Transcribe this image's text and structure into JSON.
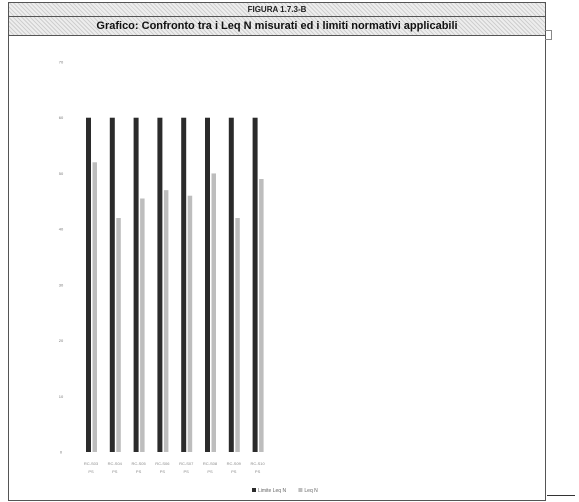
{
  "figure_label": "FIGURA 1.7.3-B",
  "chart_data": {
    "type": "bar",
    "title": "Grafico: Confronto tra i Leq N misurati ed i limiti normativi applicabili",
    "xlabel": "",
    "ylabel": "",
    "ylim": [
      0,
      70
    ],
    "yticks": [
      0,
      10,
      20,
      30,
      40,
      50,
      60,
      70
    ],
    "categories": [
      "RC-S03 - PS",
      "RC-S04 - PS",
      "RC-S05 - PS",
      "RC-S06 - PS",
      "RC-S07 - PS",
      "RC-S08 - PS",
      "RC-S09 - PS",
      "RC-S10 - PS"
    ],
    "series": [
      {
        "name": "Limite Leq N",
        "color": "#2b2b2b",
        "values": [
          60,
          60,
          60,
          60,
          60,
          60,
          60,
          60
        ]
      },
      {
        "name": "Leq N",
        "color": "#bdbdbd",
        "values": [
          52,
          42,
          45.5,
          47,
          46,
          50,
          42,
          49
        ]
      }
    ],
    "legend_position": "bottom",
    "grid": false
  }
}
